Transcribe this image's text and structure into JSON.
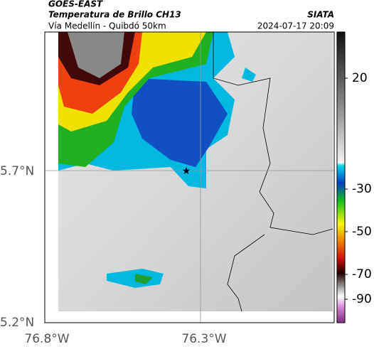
{
  "header": {
    "title": "GOES-EAST",
    "subtitle": "Temperatura de Brillo CH13",
    "source": "SIATA",
    "location": "Vía Medellín - Quibdó 50km",
    "timestamp": "2024-07-17 20:09"
  },
  "map": {
    "lat_labels": [
      "5.7°N",
      "5.2°N"
    ],
    "lon_labels": [
      "76.8°W",
      "76.3°W"
    ]
  },
  "colorbar": {
    "ticks": [
      "20",
      "-30",
      "-50",
      "-70",
      "-90"
    ]
  }
}
